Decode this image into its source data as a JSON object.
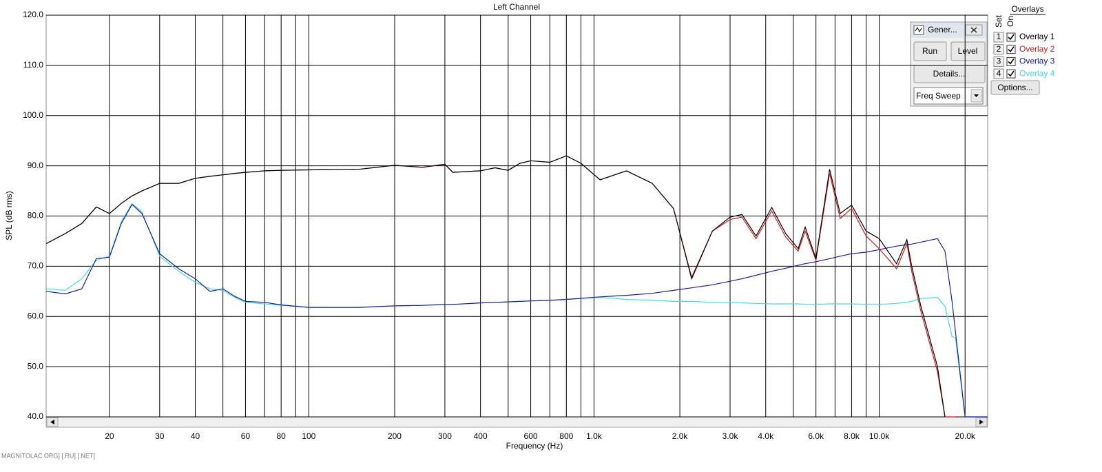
{
  "chart_data": {
    "type": "line",
    "title": "Left Channel",
    "xlabel": "Frequency (Hz)",
    "ylabel": "SPL (dB rms)",
    "xscale": "log",
    "grid": true,
    "xlim": [
      12,
      24000
    ],
    "ylim": [
      40,
      120
    ],
    "xticks": [
      20,
      30,
      40,
      60,
      80,
      100,
      200,
      300,
      400,
      600,
      800,
      {
        "value": 1000,
        "label": "1.0k"
      },
      {
        "value": 2000,
        "label": "2.0k"
      },
      {
        "value": 3000,
        "label": "3.0k"
      },
      {
        "value": 4000,
        "label": "4.0k"
      },
      {
        "value": 6000,
        "label": "6.0k"
      },
      {
        "value": 8000,
        "label": "8.0k"
      },
      {
        "value": 10000,
        "label": "10.0k"
      },
      {
        "value": 20000,
        "label": "20.0k"
      }
    ],
    "xgrid_minor": [
      50,
      70,
      90,
      500,
      700,
      900,
      5000,
      7000,
      9000
    ],
    "yticks": [
      {
        "value": 40,
        "label": "40.0"
      },
      {
        "value": 50,
        "label": "50.0"
      },
      {
        "value": 60,
        "label": "60.0"
      },
      {
        "value": 70,
        "label": "70.0"
      },
      {
        "value": 80,
        "label": "80.0"
      },
      {
        "value": 90,
        "label": "90.0"
      },
      {
        "value": 100,
        "label": "100.0"
      },
      {
        "value": 110,
        "label": "110.0"
      },
      {
        "value": 120,
        "label": "120.0"
      }
    ],
    "x": [
      12,
      14,
      16,
      18,
      20,
      22,
      24,
      26,
      30,
      35,
      40,
      45,
      50,
      55,
      60,
      70,
      80,
      100,
      150,
      200,
      250,
      300,
      320,
      400,
      450,
      500,
      550,
      600,
      700,
      800,
      900,
      1050,
      1300,
      1600,
      1900,
      2200,
      2600,
      3000,
      3300,
      3700,
      4200,
      4700,
      5200,
      5500,
      6000,
      6700,
      7300,
      8000,
      9000,
      10000,
      11500,
      12500,
      13000,
      14000,
      16000,
      17000,
      18000,
      18500,
      20000,
      24000
    ],
    "series": [
      {
        "name": "Overlay 4",
        "color": "#3ee0e0",
        "values": [
          65.5,
          65.2,
          67.5,
          71.2,
          72,
          78.8,
          82.5,
          80.8,
          72,
          69,
          66.8,
          65.5,
          65.2,
          63.8,
          62.8,
          62.5,
          62.2,
          61.8,
          61.8,
          62.1,
          62.2,
          62.4,
          62.4,
          62.7,
          62.8,
          62.9,
          63,
          63.1,
          63.2,
          63.4,
          63.6,
          63.8,
          63.4,
          63.2,
          63,
          63,
          62.8,
          62.8,
          62.7,
          62.6,
          62.5,
          62.5,
          62.5,
          62.4,
          62.4,
          62.5,
          62.5,
          62.5,
          62.4,
          62.4,
          62.6,
          62.8,
          63,
          63.6,
          63.8,
          62,
          56,
          55.8,
          40,
          40
        ]
      },
      {
        "name": "Overlay 3",
        "color": "#1c1c9c",
        "values": [
          65,
          64.5,
          65.5,
          71.5,
          71.8,
          78.5,
          82.3,
          80.5,
          72.5,
          69.5,
          67.5,
          65,
          65.5,
          64,
          63,
          62.8,
          62.3,
          61.8,
          61.8,
          62.1,
          62.2,
          62.4,
          62.4,
          62.7,
          62.8,
          62.9,
          63,
          63.1,
          63.2,
          63.4,
          63.6,
          63.9,
          64.2,
          64.6,
          65.2,
          65.7,
          66.3,
          67,
          67.5,
          68.2,
          69,
          69.6,
          70.2,
          70.5,
          70.9,
          71.5,
          72,
          72.5,
          72.8,
          73.3,
          74,
          74.3,
          74.4,
          74.8,
          75.5,
          73,
          63,
          57,
          40,
          40
        ]
      },
      {
        "name": "Overlay 2",
        "color": "#d81818",
        "values": [
          74.5,
          76.5,
          78.5,
          81.8,
          80.5,
          82.5,
          84,
          85,
          86.5,
          86.5,
          87.5,
          87.9,
          88.2,
          88.5,
          88.7,
          89,
          89.1,
          89.2,
          89.3,
          90.1,
          89.7,
          90.3,
          88.7,
          89,
          89.6,
          89.1,
          90.5,
          91,
          90.7,
          92,
          90.5,
          87.2,
          89,
          86.5,
          81.5,
          67.8,
          77,
          79.3,
          79.8,
          75.5,
          81,
          75.8,
          73,
          77,
          71.2,
          88.5,
          79.5,
          81.5,
          76,
          73.5,
          69.5,
          74.5,
          69,
          61,
          49,
          40,
          40,
          40,
          null,
          null
        ]
      },
      {
        "name": "Overlay 1",
        "color": "#000000",
        "values": [
          74.5,
          76.5,
          78.5,
          81.8,
          80.5,
          82.5,
          84,
          85,
          86.5,
          86.5,
          87.5,
          87.9,
          88.2,
          88.5,
          88.7,
          89,
          89.1,
          89.2,
          89.3,
          90.1,
          89.7,
          90.3,
          88.7,
          89,
          89.6,
          89.1,
          90.5,
          91,
          90.7,
          92,
          90.5,
          87.2,
          89,
          86.5,
          81.5,
          67.5,
          77,
          79.8,
          80.3,
          76,
          81.7,
          76.5,
          73.5,
          77.8,
          71.5,
          89.3,
          80.5,
          82.2,
          77,
          75.5,
          70.5,
          75.3,
          70,
          62,
          50,
          40,
          null,
          null,
          null,
          null
        ]
      }
    ]
  },
  "overlay_panel": {
    "title": "Overlays",
    "set_label": "Set",
    "on_label": "On",
    "numbers": [
      "1",
      "2",
      "3",
      "4"
    ],
    "button": "Options..."
  },
  "generator": {
    "title": "Gener...",
    "buttons": [
      "Run",
      "Level",
      "Details..."
    ],
    "dropdown": "Freq Sweep"
  },
  "watermark": "MAGNITOLAC.ORG] [.RU] [.NET]"
}
